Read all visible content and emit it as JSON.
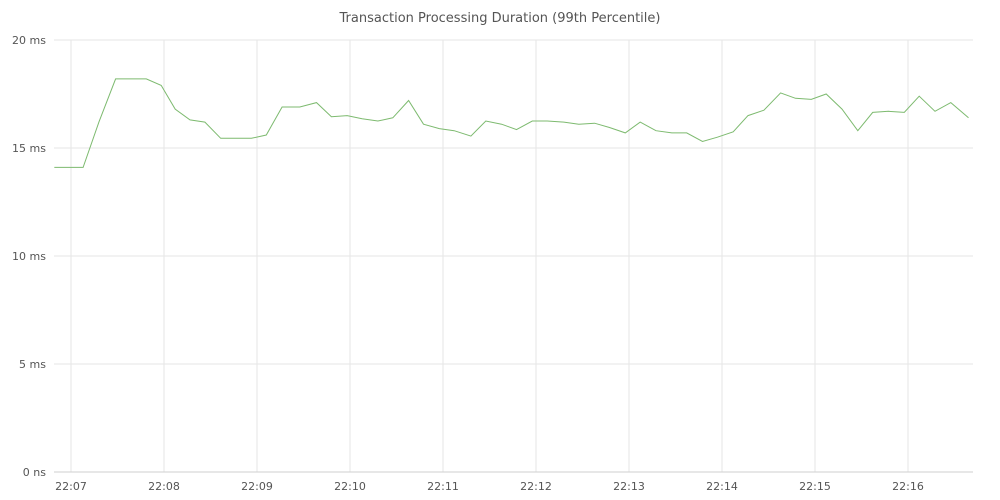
{
  "chart_data": {
    "type": "line",
    "title": "Transaction Processing Duration (99th Percentile)",
    "xlabel": "",
    "ylabel": "",
    "x_axis": {
      "start_minutes": 1327,
      "end_minutes": 1336.9,
      "ticks": [
        {
          "value": 1327,
          "label": "22:07"
        },
        {
          "value": 1328,
          "label": "22:08"
        },
        {
          "value": 1329,
          "label": "22:09"
        },
        {
          "value": 1330,
          "label": "22:10"
        },
        {
          "value": 1331,
          "label": "22:11"
        },
        {
          "value": 1332,
          "label": "22:12"
        },
        {
          "value": 1333,
          "label": "22:13"
        },
        {
          "value": 1334,
          "label": "22:14"
        },
        {
          "value": 1335,
          "label": "22:15"
        },
        {
          "value": 1336,
          "label": "22:16"
        }
      ]
    },
    "y_axis": {
      "ylim": [
        0,
        20
      ],
      "ticks": [
        {
          "value": 0,
          "label": "0 ns"
        },
        {
          "value": 5,
          "label": "5 ms"
        },
        {
          "value": 10,
          "label": "10 ms"
        },
        {
          "value": 15,
          "label": "15 ms"
        },
        {
          "value": 20,
          "label": "20 ms"
        }
      ]
    },
    "grid": true,
    "series": [
      {
        "color": "#7dba6f",
        "points": [
          [
            1326.82,
            14.1
          ],
          [
            1326.98,
            14.1
          ],
          [
            1327.13,
            14.1
          ],
          [
            1327.3,
            16.2
          ],
          [
            1327.48,
            18.2
          ],
          [
            1327.64,
            18.2
          ],
          [
            1327.81,
            18.2
          ],
          [
            1327.97,
            17.9
          ],
          [
            1328.12,
            16.8
          ],
          [
            1328.28,
            16.3
          ],
          [
            1328.44,
            16.2
          ],
          [
            1328.61,
            15.45
          ],
          [
            1328.77,
            15.45
          ],
          [
            1328.94,
            15.45
          ],
          [
            1329.1,
            15.6
          ],
          [
            1329.27,
            16.9
          ],
          [
            1329.46,
            16.9
          ],
          [
            1329.64,
            17.1
          ],
          [
            1329.8,
            16.45
          ],
          [
            1329.97,
            16.5
          ],
          [
            1330.13,
            16.35
          ],
          [
            1330.3,
            16.25
          ],
          [
            1330.46,
            16.4
          ],
          [
            1330.63,
            17.2
          ],
          [
            1330.79,
            16.1
          ],
          [
            1330.96,
            15.9
          ],
          [
            1331.12,
            15.8
          ],
          [
            1331.3,
            15.55
          ],
          [
            1331.46,
            16.25
          ],
          [
            1331.63,
            16.1
          ],
          [
            1331.79,
            15.85
          ],
          [
            1331.96,
            16.25
          ],
          [
            1332.12,
            16.25
          ],
          [
            1332.3,
            16.2
          ],
          [
            1332.46,
            16.1
          ],
          [
            1332.63,
            16.15
          ],
          [
            1332.79,
            15.95
          ],
          [
            1332.96,
            15.7
          ],
          [
            1333.12,
            16.2
          ],
          [
            1333.29,
            15.8
          ],
          [
            1333.46,
            15.7
          ],
          [
            1333.62,
            15.7
          ],
          [
            1333.79,
            15.3
          ],
          [
            1333.95,
            15.5
          ],
          [
            1334.12,
            15.75
          ],
          [
            1334.28,
            16.5
          ],
          [
            1334.45,
            16.75
          ],
          [
            1334.63,
            17.55
          ],
          [
            1334.79,
            17.3
          ],
          [
            1334.96,
            17.25
          ],
          [
            1335.12,
            17.5
          ],
          [
            1335.29,
            16.8
          ],
          [
            1335.46,
            15.8
          ],
          [
            1335.62,
            16.65
          ],
          [
            1335.79,
            16.7
          ],
          [
            1335.96,
            16.65
          ],
          [
            1336.12,
            17.4
          ],
          [
            1336.29,
            16.7
          ],
          [
            1336.46,
            17.1
          ],
          [
            1336.65,
            16.4
          ]
        ]
      }
    ]
  }
}
